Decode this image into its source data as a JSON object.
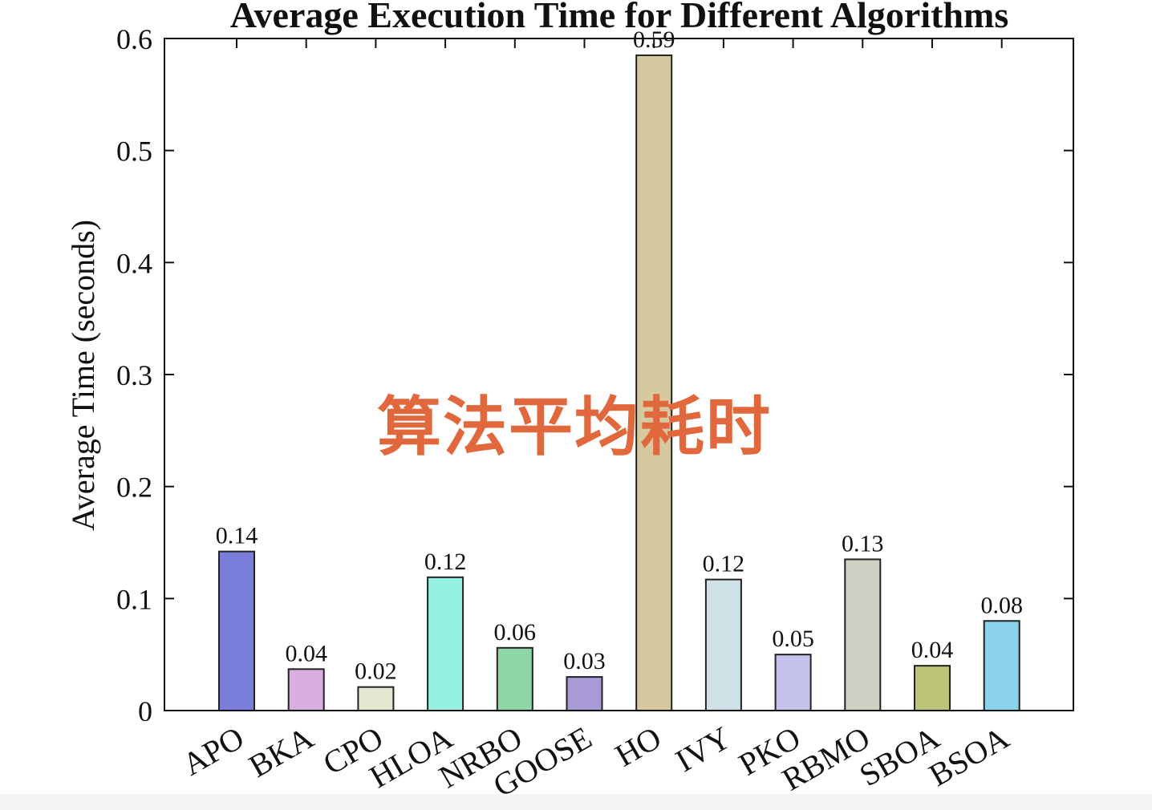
{
  "chart_data": {
    "type": "bar",
    "title": "Average Execution Time for Different Algorithms",
    "xlabel": "",
    "ylabel": "Average Time (seconds)",
    "ylim": [
      0,
      0.6
    ],
    "yticks": [
      "0",
      "0.1",
      "0.2",
      "0.3",
      "0.4",
      "0.5",
      "0.6"
    ],
    "grid": false,
    "categories": [
      "APO",
      "BKA",
      "CPO",
      "HLOA",
      "NRBO",
      "GOOSE",
      "HO",
      "IVY",
      "PKO",
      "RBMO",
      "SBOA",
      "BSOA"
    ],
    "values": [
      0.142,
      0.037,
      0.021,
      0.119,
      0.056,
      0.03,
      0.585,
      0.117,
      0.05,
      0.135,
      0.04,
      0.08
    ],
    "value_labels": [
      "0.14",
      "0.04",
      "0.02",
      "0.12",
      "0.06",
      "0.03",
      "0.59",
      "0.12",
      "0.05",
      "0.13",
      "0.04",
      "0.08"
    ],
    "colors": [
      "#7b7ddb",
      "#d9aee0",
      "#e2e8d2",
      "#96f0e2",
      "#8fd6a6",
      "#a89bd8",
      "#d6c9a0",
      "#cfe0e6",
      "#c5c3ee",
      "#cfcfc4",
      "#bcc478",
      "#8ad3ea"
    ]
  },
  "overlay": {
    "watermark_text": "算法平均耗时",
    "color": "#e1673c"
  }
}
